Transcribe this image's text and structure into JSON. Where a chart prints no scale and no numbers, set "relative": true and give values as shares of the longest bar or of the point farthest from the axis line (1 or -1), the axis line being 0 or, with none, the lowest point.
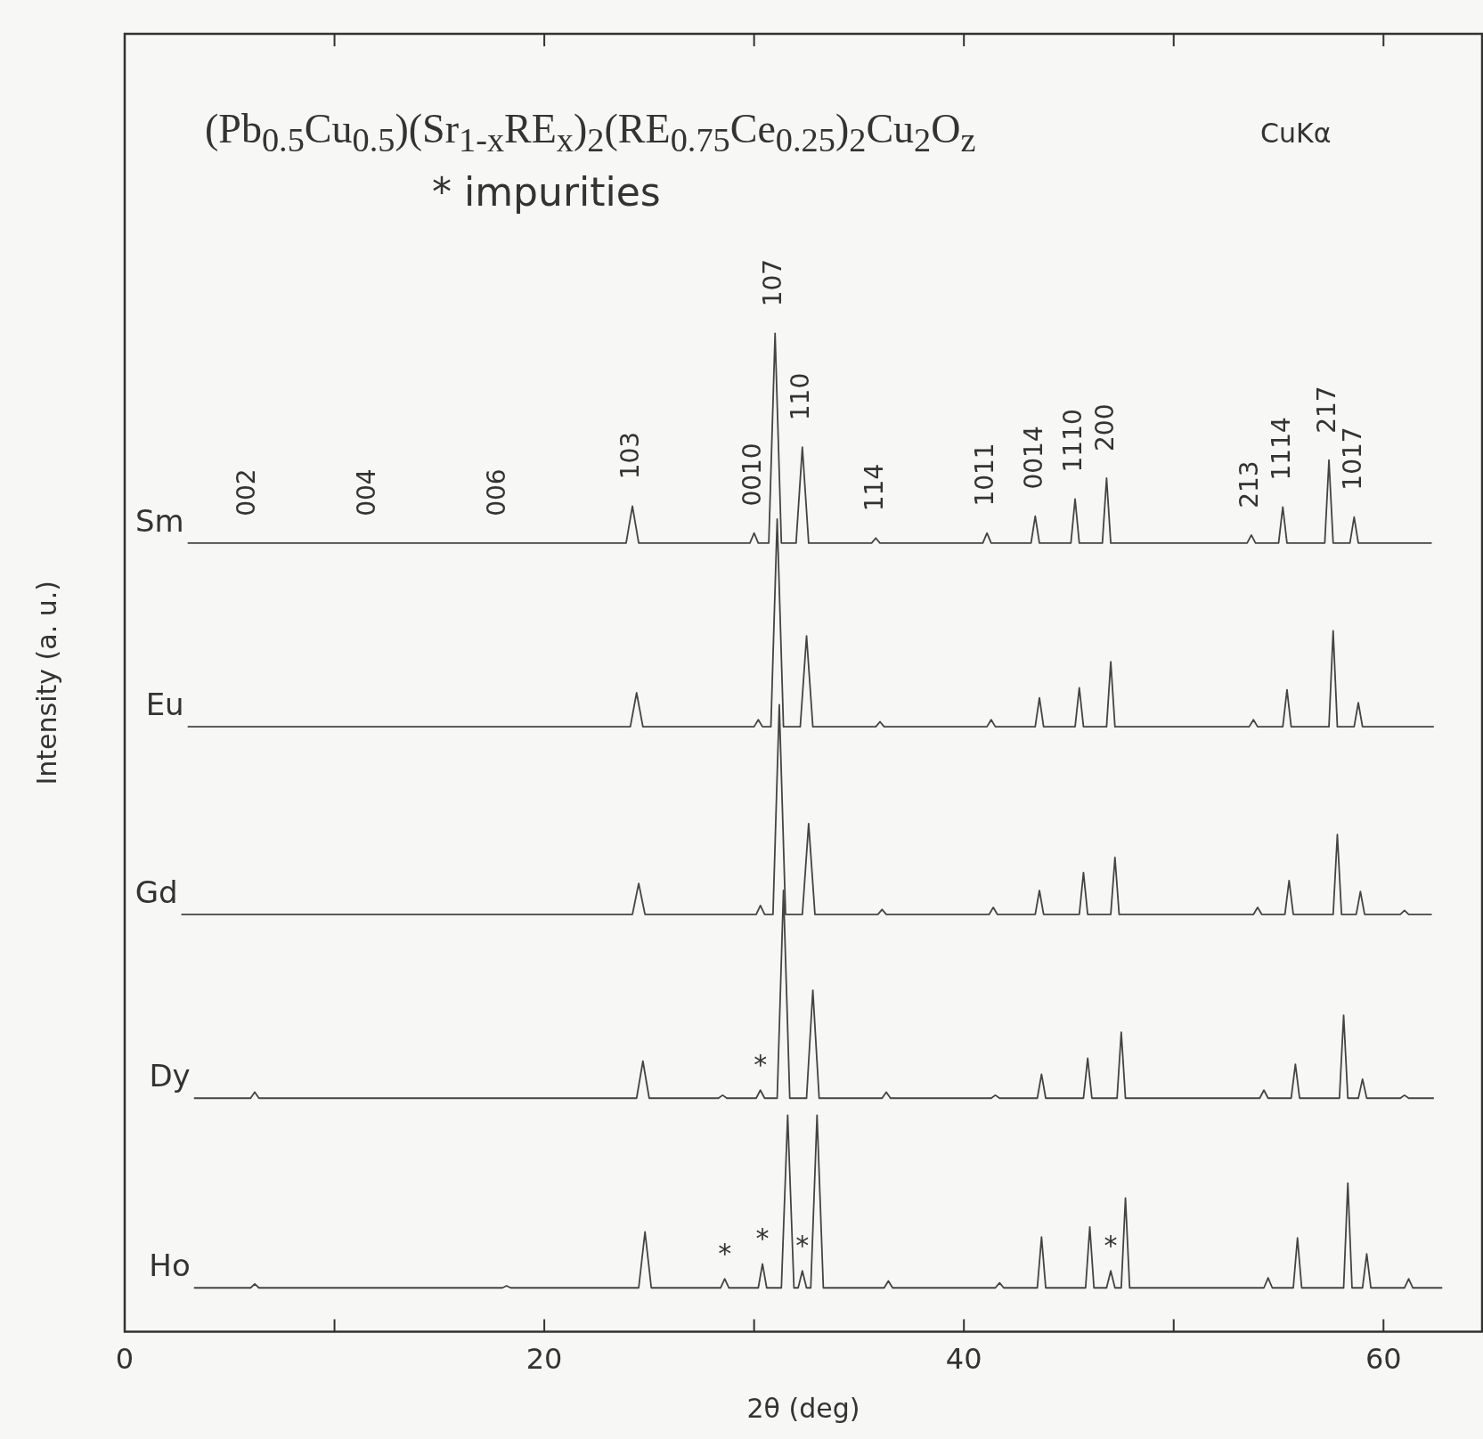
{
  "chart_data": {
    "type": "line",
    "title": "(Pb$_{0.5}$Cu$_{0.5}$)(Sr$_{1-x}$RE$_{x}$)$_{2}$(RE$_{0.75}$Ce$_{0.25}$)$_{2}$Cu$_{2}$O$_{z}$",
    "xlabel": "2θ (deg)",
    "ylabel": "Intensity (a. u.)",
    "relative": true,
    "xlim": [
      0,
      64.7
    ],
    "xticks": [
      0,
      {
        "value": 10,
        "label": null
      },
      20,
      {
        "value": 30,
        "label": null
      },
      40,
      {
        "value": 50,
        "label": null
      },
      60
    ],
    "series": [
      {
        "name": "Sm",
        "color": "#444444",
        "x": [
          3.0,
          23.9,
          24.2,
          24.5,
          29.8,
          30.0,
          30.2,
          30.7,
          31.0,
          31.3,
          32.0,
          32.3,
          32.6,
          35.6,
          35.8,
          36.0,
          40.9,
          41.1,
          41.3,
          43.2,
          43.4,
          43.6,
          45.1,
          45.3,
          45.5,
          46.6,
          46.8,
          47.0,
          53.5,
          53.7,
          53.9,
          55.0,
          55.2,
          55.4,
          57.2,
          57.4,
          57.6,
          58.4,
          58.6,
          58.8,
          62.3
        ],
        "values": [
          0.79,
          0.79,
          0.827,
          0.79,
          0.79,
          0.8,
          0.79,
          0.79,
          1.0,
          0.79,
          0.79,
          0.886,
          0.79,
          0.79,
          0.795,
          0.79,
          0.79,
          0.8,
          0.79,
          0.79,
          0.817,
          0.79,
          0.79,
          0.834,
          0.79,
          0.79,
          0.855,
          0.79,
          0.79,
          0.798,
          0.79,
          0.79,
          0.826,
          0.79,
          0.79,
          0.873,
          0.79,
          0.79,
          0.816,
          0.79,
          0.79
        ]
      },
      {
        "name": "Eu",
        "color": "#444444",
        "x": [
          3.0,
          24.1,
          24.4,
          24.7,
          30.0,
          30.2,
          30.4,
          30.8,
          31.1,
          31.4,
          32.2,
          32.5,
          32.8,
          35.8,
          36.0,
          36.2,
          41.1,
          41.3,
          41.5,
          43.4,
          43.6,
          43.8,
          45.3,
          45.5,
          45.7,
          46.8,
          47.0,
          47.2,
          53.6,
          53.8,
          54.0,
          55.2,
          55.4,
          55.6,
          57.4,
          57.6,
          57.8,
          58.6,
          58.8,
          59.0,
          62.4
        ],
        "values": [
          0.606,
          0.606,
          0.64,
          0.606,
          0.606,
          0.613,
          0.606,
          0.606,
          0.814,
          0.606,
          0.606,
          0.697,
          0.606,
          0.606,
          0.611,
          0.606,
          0.606,
          0.613,
          0.606,
          0.606,
          0.635,
          0.606,
          0.606,
          0.645,
          0.606,
          0.606,
          0.671,
          0.606,
          0.606,
          0.613,
          0.606,
          0.606,
          0.643,
          0.606,
          0.606,
          0.702,
          0.606,
          0.606,
          0.63,
          0.606,
          0.606
        ]
      },
      {
        "name": "Gd",
        "color": "#444444",
        "x": [
          2.7,
          24.2,
          24.5,
          24.8,
          30.1,
          30.3,
          30.5,
          30.9,
          31.2,
          31.5,
          32.3,
          32.6,
          32.9,
          35.9,
          36.1,
          36.3,
          41.2,
          41.4,
          41.6,
          43.4,
          43.6,
          43.8,
          45.5,
          45.7,
          45.9,
          47.0,
          47.2,
          47.4,
          53.8,
          54.0,
          54.2,
          55.3,
          55.5,
          55.7,
          57.6,
          57.8,
          58.0,
          58.7,
          58.9,
          59.1,
          60.8,
          61.0,
          61.2,
          62.3
        ],
        "values": [
          0.418,
          0.418,
          0.449,
          0.418,
          0.418,
          0.427,
          0.418,
          0.418,
          0.628,
          0.418,
          0.418,
          0.509,
          0.418,
          0.418,
          0.423,
          0.418,
          0.418,
          0.425,
          0.418,
          0.418,
          0.442,
          0.418,
          0.418,
          0.46,
          0.418,
          0.418,
          0.475,
          0.418,
          0.418,
          0.425,
          0.418,
          0.418,
          0.452,
          0.418,
          0.418,
          0.498,
          0.418,
          0.418,
          0.441,
          0.418,
          0.418,
          0.422,
          0.418,
          0.418
        ]
      },
      {
        "name": "Dy",
        "color": "#444444",
        "x": [
          3.3,
          6.0,
          6.2,
          6.4,
          24.4,
          24.7,
          25.0,
          28.3,
          28.5,
          28.7,
          30.1,
          30.3,
          30.5,
          31.1,
          31.4,
          31.7,
          32.5,
          32.8,
          33.1,
          36.1,
          36.3,
          36.5,
          41.3,
          41.5,
          41.7,
          43.5,
          43.7,
          43.9,
          45.7,
          45.9,
          46.1,
          47.3,
          47.5,
          47.7,
          54.1,
          54.3,
          54.5,
          55.6,
          55.8,
          56.0,
          57.9,
          58.1,
          58.3,
          58.8,
          59.0,
          59.2,
          60.8,
          61.0,
          61.2,
          62.4
        ],
        "values": [
          0.234,
          0.234,
          0.24,
          0.234,
          0.234,
          0.271,
          0.234,
          0.234,
          0.237,
          0.234,
          0.234,
          0.242,
          0.234,
          0.234,
          0.442,
          0.234,
          0.234,
          0.342,
          0.234,
          0.234,
          0.24,
          0.234,
          0.234,
          0.237,
          0.234,
          0.234,
          0.258,
          0.234,
          0.234,
          0.274,
          0.234,
          0.234,
          0.3,
          0.234,
          0.234,
          0.242,
          0.234,
          0.234,
          0.268,
          0.234,
          0.234,
          0.317,
          0.234,
          0.234,
          0.253,
          0.234,
          0.234,
          0.237,
          0.234,
          0.234
        ]
      },
      {
        "name": "Ho",
        "color": "#444444",
        "x": [
          3.3,
          6.0,
          6.2,
          6.4,
          18.0,
          18.2,
          18.4,
          24.5,
          24.8,
          25.1,
          28.4,
          28.6,
          28.8,
          30.2,
          30.4,
          30.6,
          31.3,
          31.6,
          31.9,
          32.1,
          32.3,
          32.5,
          32.7,
          33.0,
          33.3,
          36.2,
          36.4,
          36.6,
          41.5,
          41.7,
          41.9,
          43.5,
          43.7,
          43.9,
          45.8,
          46.0,
          46.2,
          46.8,
          47.0,
          47.2,
          47.5,
          47.7,
          47.9,
          54.3,
          54.5,
          54.7,
          55.7,
          55.9,
          56.1,
          58.1,
          58.3,
          58.5,
          59.0,
          59.2,
          59.4,
          61.0,
          61.2,
          61.4,
          62.8
        ],
        "values": [
          0.044,
          0.044,
          0.048,
          0.044,
          0.044,
          0.046,
          0.044,
          0.044,
          0.1,
          0.044,
          0.044,
          0.053,
          0.044,
          0.044,
          0.068,
          0.044,
          0.044,
          0.217,
          0.044,
          0.044,
          0.061,
          0.044,
          0.044,
          0.217,
          0.044,
          0.044,
          0.051,
          0.044,
          0.044,
          0.049,
          0.044,
          0.044,
          0.095,
          0.044,
          0.044,
          0.105,
          0.044,
          0.044,
          0.061,
          0.044,
          0.044,
          0.134,
          0.044,
          0.044,
          0.054,
          0.044,
          0.044,
          0.094,
          0.044,
          0.044,
          0.149,
          0.044,
          0.044,
          0.078,
          0.044,
          0.044,
          0.053,
          0.044,
          0.044
        ]
      }
    ],
    "annotations": [
      "CuKα",
      "* impurities",
      {
        "text": "002",
        "x": 5.9,
        "y": 0.79
      },
      {
        "text": "004",
        "x": 11.6,
        "y": 0.79
      },
      {
        "text": "006",
        "x": 17.8,
        "y": 0.79
      },
      {
        "text": "103",
        "x": 24.2,
        "y": 0.827
      },
      {
        "text": "0010",
        "x": 30.0,
        "y": 0.8
      },
      {
        "text": "107",
        "x": 31.0,
        "y": 1.0
      },
      {
        "text": "110",
        "x": 32.3,
        "y": 0.886
      },
      {
        "text": "114",
        "x": 35.8,
        "y": 0.795
      },
      {
        "text": "1011",
        "x": 41.1,
        "y": 0.8
      },
      {
        "text": "0014",
        "x": 43.4,
        "y": 0.817
      },
      {
        "text": "1110",
        "x": 45.3,
        "y": 0.834
      },
      {
        "text": "200",
        "x": 46.8,
        "y": 0.855
      },
      {
        "text": "213",
        "x": 53.7,
        "y": 0.798
      },
      {
        "text": "1114",
        "x": 55.2,
        "y": 0.826
      },
      {
        "text": "217",
        "x": 57.4,
        "y": 0.873
      },
      {
        "text": "1017",
        "x": 58.6,
        "y": 0.816
      },
      {
        "text": "*",
        "x": 30.3,
        "y": 0.242
      },
      {
        "text": "*",
        "x": 28.6,
        "y": 0.053
      },
      {
        "text": "*",
        "x": 30.4,
        "y": 0.068
      },
      {
        "text": "*",
        "x": 32.3,
        "y": 0.061
      },
      {
        "text": "*",
        "x": 47.0,
        "y": 0.061
      }
    ]
  }
}
